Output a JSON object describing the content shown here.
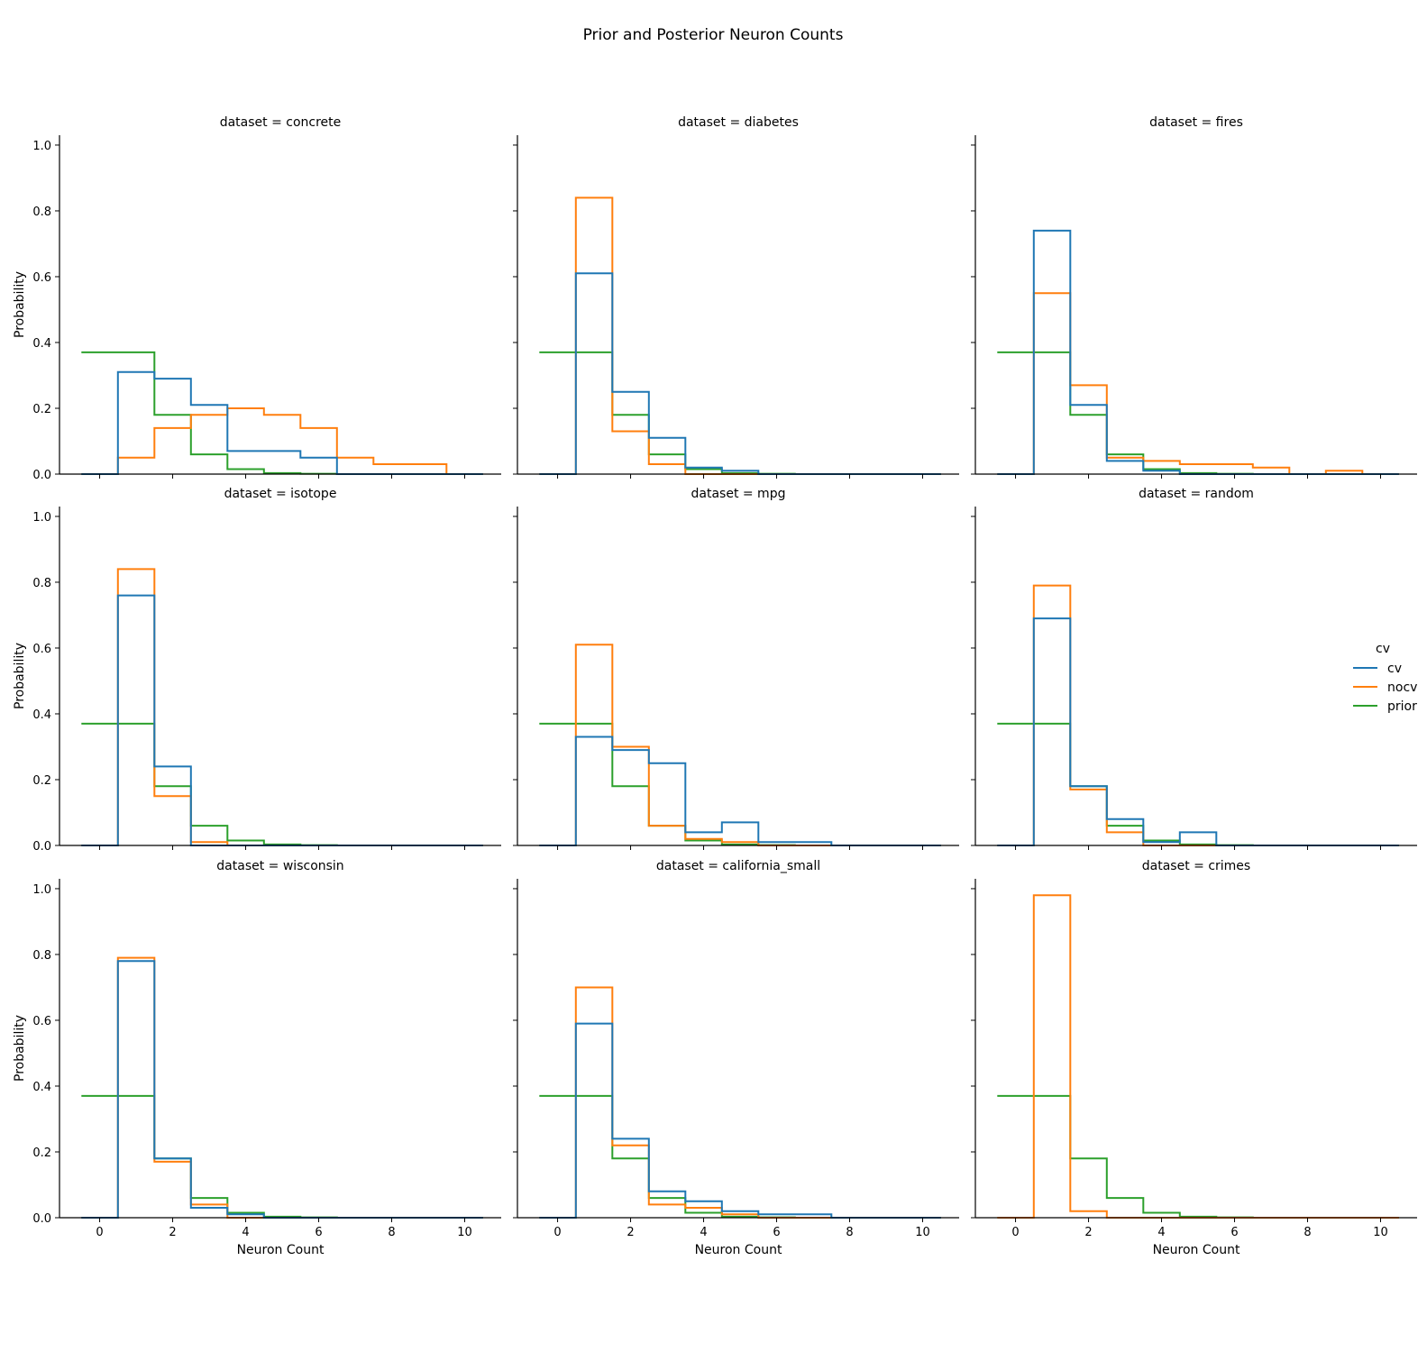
{
  "figure": {
    "title": "Prior and Posterior Neuron Counts",
    "xlabel": "Neuron Count",
    "ylabel": "Probability"
  },
  "legend": {
    "title": "cv",
    "entries": [
      {
        "key": "cv",
        "label": "cv",
        "color": "#1f77b4"
      },
      {
        "key": "nocv",
        "label": "nocv",
        "color": "#ff7f0e"
      },
      {
        "key": "prior",
        "label": "prior",
        "color": "#2ca02c"
      }
    ]
  },
  "chart_data": {
    "type": "histogram-step",
    "x_ticks": [
      "0",
      "2",
      "4",
      "6",
      "8",
      "10"
    ],
    "y_ticks": [
      "0.0",
      "0.2",
      "0.4",
      "0.6",
      "0.8",
      "1.0"
    ],
    "xlim": [
      -1.1,
      11.0
    ],
    "ylim": [
      0,
      1.03
    ],
    "bins": [
      0,
      1,
      2,
      3,
      4,
      5,
      6,
      7,
      8,
      9,
      10
    ],
    "panels": [
      {
        "title": "dataset = concrete",
        "series": {
          "cv": [
            0,
            0.31,
            0.29,
            0.21,
            0.07,
            0.07,
            0.05,
            0,
            0,
            0,
            0
          ],
          "nocv": [
            0,
            0.05,
            0.14,
            0.18,
            0.2,
            0.18,
            0.14,
            0.05,
            0.03,
            0.03,
            0
          ],
          "prior": [
            0.37,
            0.37,
            0.18,
            0.06,
            0.015,
            0.003,
            0.001,
            0,
            0,
            0,
            0
          ]
        }
      },
      {
        "title": "dataset = diabetes",
        "series": {
          "cv": [
            0,
            0.61,
            0.25,
            0.11,
            0.02,
            0.01,
            0,
            0,
            0,
            0,
            0
          ],
          "nocv": [
            0,
            0.84,
            0.13,
            0.03,
            0,
            0,
            0,
            0,
            0,
            0,
            0
          ],
          "prior": [
            0.37,
            0.37,
            0.18,
            0.06,
            0.015,
            0.003,
            0.001,
            0,
            0,
            0,
            0
          ]
        }
      },
      {
        "title": "dataset = fires",
        "series": {
          "cv": [
            0,
            0.74,
            0.21,
            0.04,
            0.01,
            0,
            0,
            0,
            0,
            0,
            0
          ],
          "nocv": [
            0,
            0.55,
            0.27,
            0.05,
            0.04,
            0.03,
            0.03,
            0.02,
            0,
            0.01,
            0
          ],
          "prior": [
            0.37,
            0.37,
            0.18,
            0.06,
            0.015,
            0.003,
            0.001,
            0,
            0,
            0,
            0
          ]
        }
      },
      {
        "title": "dataset = isotope",
        "series": {
          "cv": [
            0,
            0.76,
            0.24,
            0,
            0,
            0,
            0,
            0,
            0,
            0,
            0
          ],
          "nocv": [
            0,
            0.84,
            0.15,
            0.01,
            0,
            0,
            0,
            0,
            0,
            0,
            0
          ],
          "prior": [
            0.37,
            0.37,
            0.18,
            0.06,
            0.015,
            0.003,
            0.001,
            0,
            0,
            0,
            0
          ]
        }
      },
      {
        "title": "dataset = mpg",
        "series": {
          "cv": [
            0,
            0.33,
            0.29,
            0.25,
            0.04,
            0.07,
            0.01,
            0.01,
            0,
            0,
            0
          ],
          "nocv": [
            0,
            0.61,
            0.3,
            0.06,
            0.02,
            0.01,
            0,
            0,
            0,
            0,
            0
          ],
          "prior": [
            0.37,
            0.37,
            0.18,
            0.06,
            0.015,
            0.003,
            0.001,
            0,
            0,
            0,
            0
          ]
        }
      },
      {
        "title": "dataset = random",
        "series": {
          "cv": [
            0,
            0.69,
            0.18,
            0.08,
            0.01,
            0.04,
            0,
            0,
            0,
            0,
            0
          ],
          "nocv": [
            0,
            0.79,
            0.17,
            0.04,
            0,
            0,
            0,
            0,
            0,
            0,
            0
          ],
          "prior": [
            0.37,
            0.37,
            0.18,
            0.06,
            0.015,
            0.003,
            0.001,
            0,
            0,
            0,
            0
          ]
        }
      },
      {
        "title": "dataset = wisconsin",
        "series": {
          "cv": [
            0,
            0.78,
            0.18,
            0.03,
            0.01,
            0,
            0,
            0,
            0,
            0,
            0
          ],
          "nocv": [
            0,
            0.79,
            0.17,
            0.04,
            0,
            0,
            0,
            0,
            0,
            0,
            0
          ],
          "prior": [
            0.37,
            0.37,
            0.18,
            0.06,
            0.015,
            0.003,
            0.001,
            0,
            0,
            0,
            0
          ]
        }
      },
      {
        "title": "dataset = california_small",
        "series": {
          "cv": [
            0,
            0.59,
            0.24,
            0.08,
            0.05,
            0.02,
            0.01,
            0.01,
            0,
            0,
            0
          ],
          "nocv": [
            0,
            0.7,
            0.22,
            0.04,
            0.03,
            0.01,
            0,
            0,
            0,
            0,
            0
          ],
          "prior": [
            0.37,
            0.37,
            0.18,
            0.06,
            0.015,
            0.003,
            0.001,
            0,
            0,
            0,
            0
          ]
        }
      },
      {
        "title": "dataset = crimes",
        "series": {
          "cv": null,
          "nocv": [
            0,
            0.98,
            0.02,
            0,
            0,
            0,
            0,
            0,
            0,
            0,
            0
          ],
          "prior": [
            0.37,
            0.37,
            0.18,
            0.06,
            0.015,
            0.003,
            0.001,
            0,
            0,
            0,
            0
          ]
        }
      }
    ]
  }
}
